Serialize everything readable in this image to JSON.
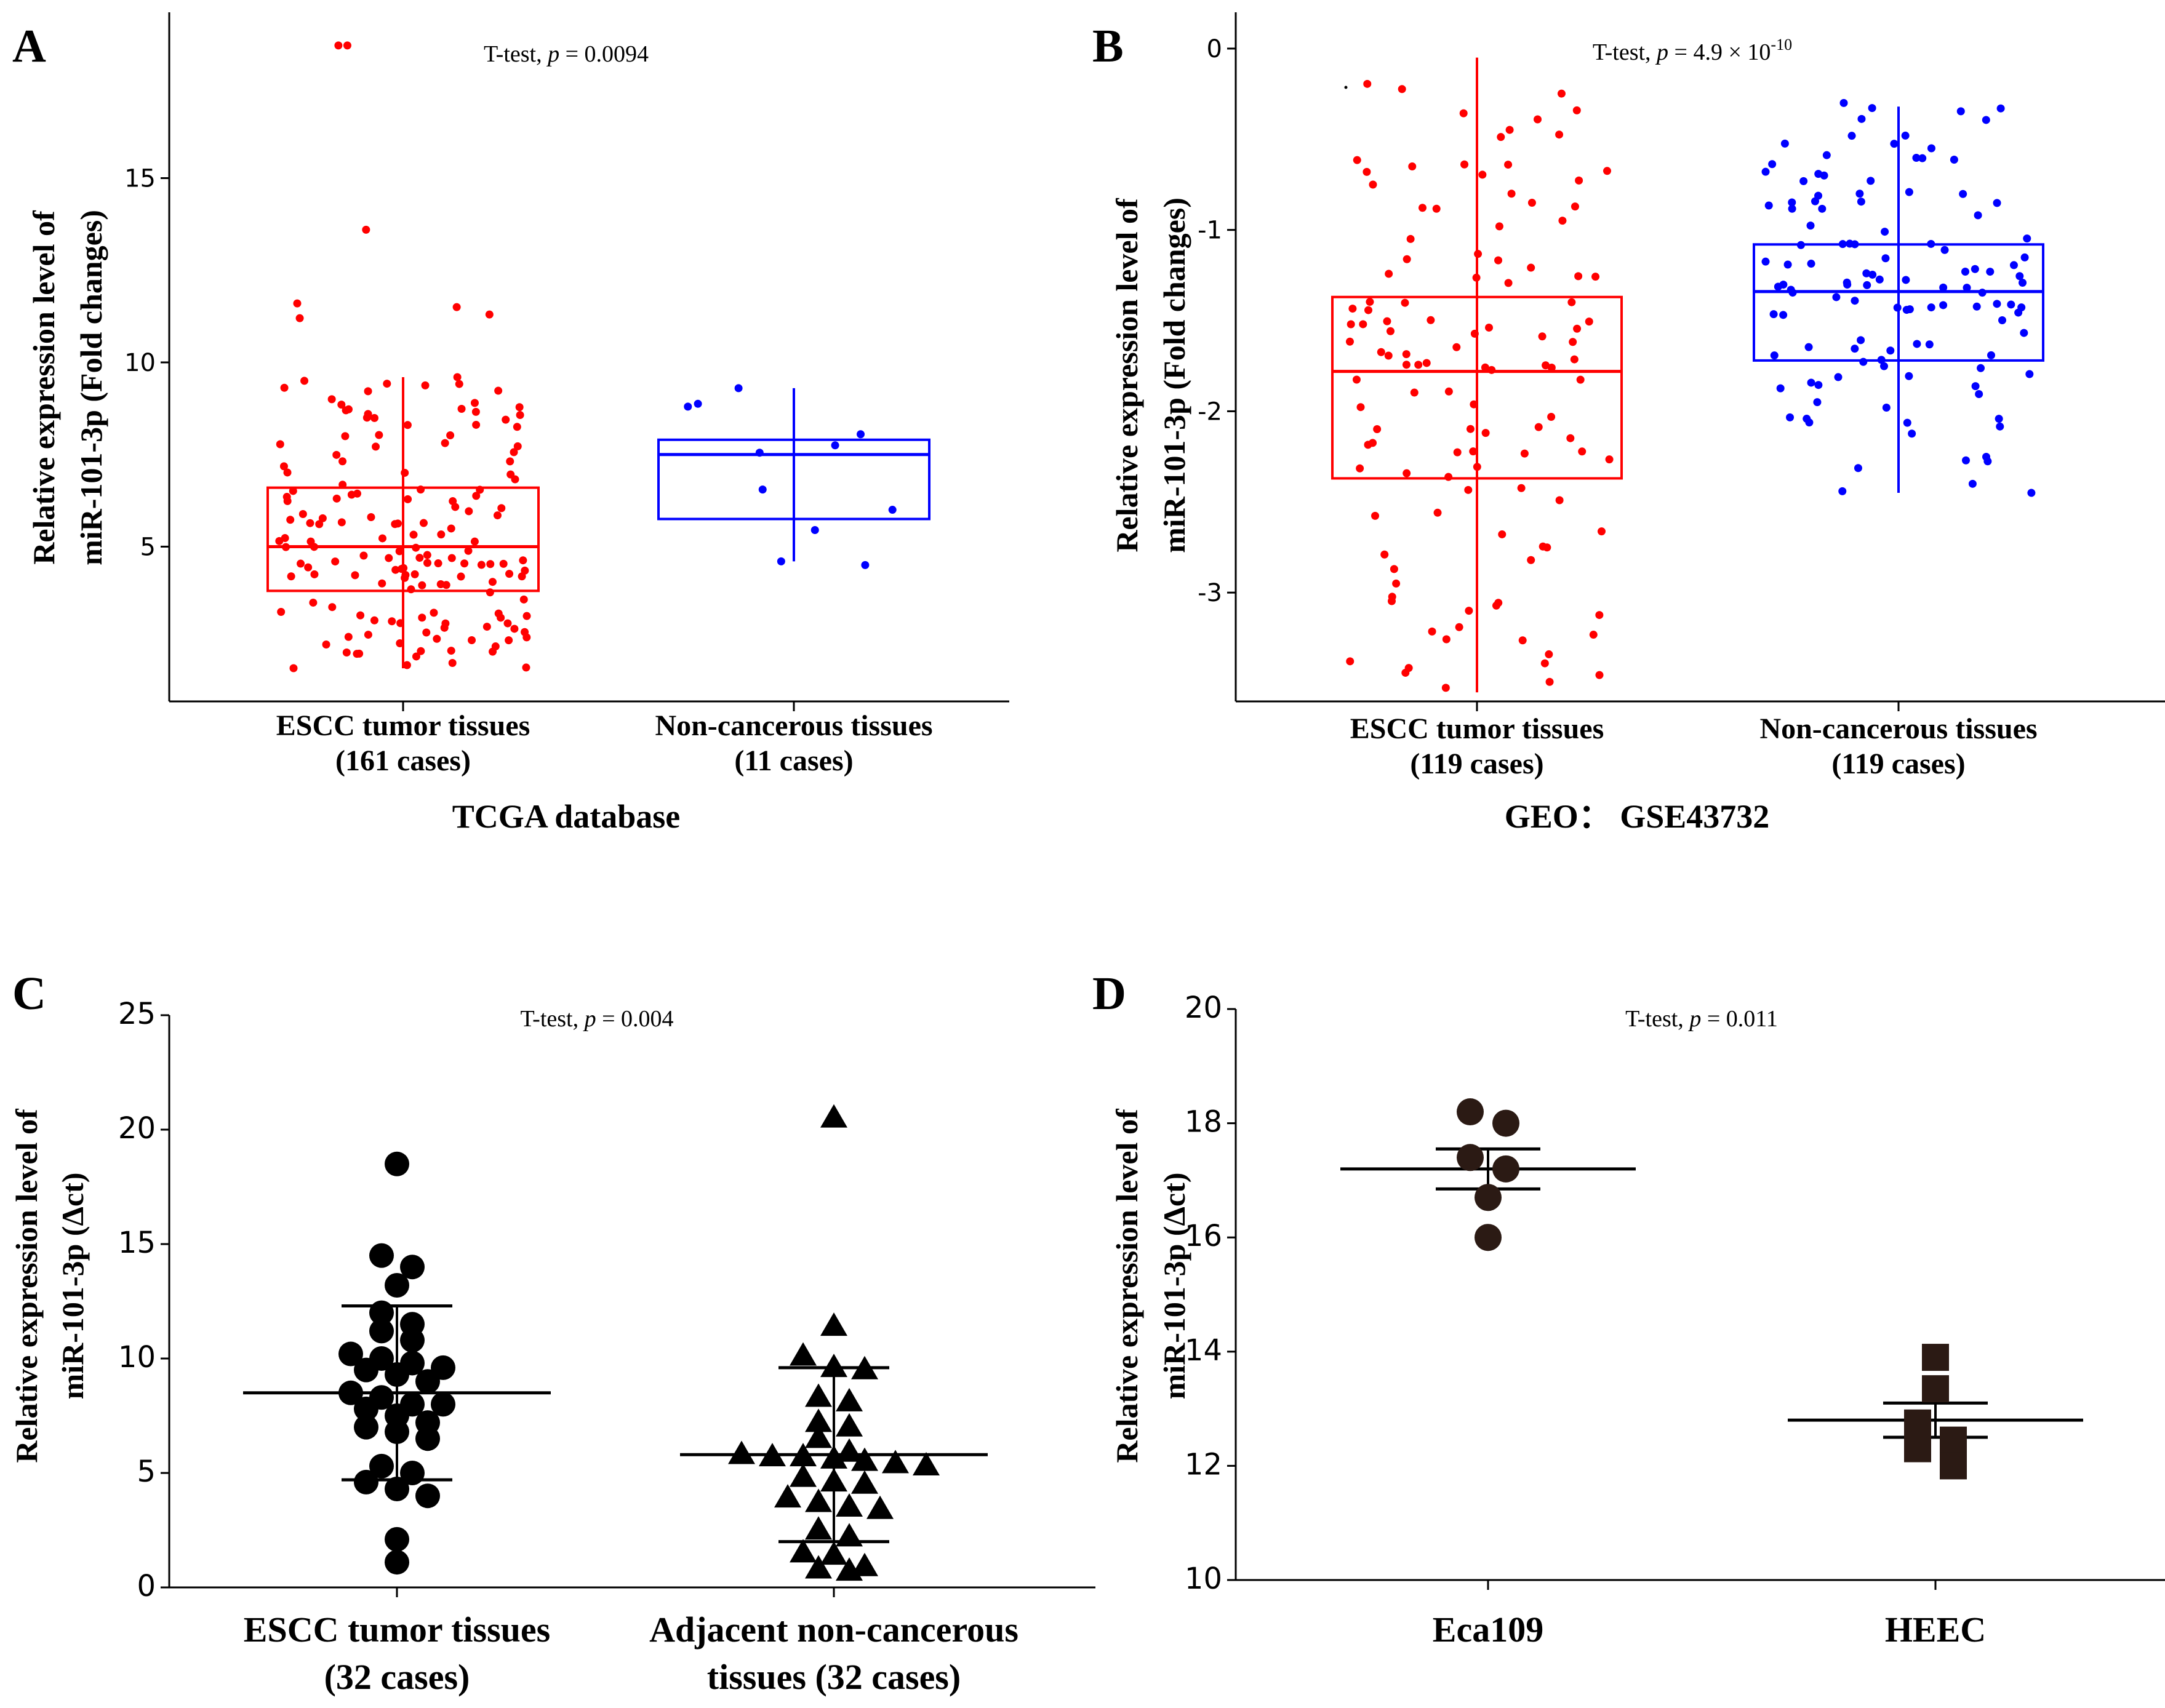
{
  "panels": [
    {
      "letter": "A",
      "stat": {
        "prefix": "T-test, ",
        "p": "p",
        "value": " = 0.0094",
        "exp": ""
      },
      "ylabel_line1": "Relative expression level of",
      "ylabel_line2": "miR-101-3p (Fold changes)",
      "database": "TCGA database"
    },
    {
      "letter": "B",
      "stat": {
        "prefix": "T-test, ",
        "p": "p",
        "value": " = 4.9 × 10",
        "exp": "-10"
      },
      "ylabel_line1": "Relative expression level of",
      "ylabel_line2": "miR-101-3p (Fold changes)",
      "database": "GEO： GSE43732"
    },
    {
      "letter": "C",
      "stat": {
        "prefix": "T-test, ",
        "p": "p",
        "value": " = 0.004",
        "exp": ""
      },
      "ylabel_line1": "Relative expression level of",
      "ylabel_line2": "miR-101-3p (Δct)",
      "database": ""
    },
    {
      "letter": "D",
      "stat": {
        "prefix": "T-test, ",
        "p": "p",
        "value": " = 0.011",
        "exp": ""
      },
      "ylabel_line1": "Relative expression level of",
      "ylabel_line2": "miR-101-3p (Δct)",
      "database": ""
    }
  ],
  "colors": {
    "tumor": "#ff0000",
    "normal": "#0000ff",
    "dots": "#000000",
    "cell": "#2b1a14"
  },
  "chart_data": [
    {
      "type": "box",
      "panel": "A",
      "title": "T-test, p = 0.0094",
      "xlabel": "TCGA database",
      "ylabel": "Relative expression level of miR-101-3p (Fold changes)",
      "ylim": [
        0.8,
        19.5
      ],
      "yticks": [
        5,
        10,
        15
      ],
      "categories": [
        {
          "line1": "ESCC tumor tissues",
          "line2": "(161 cases)"
        },
        {
          "line1": "Non-cancerous tissues",
          "line2": "(11 cases)"
        }
      ],
      "series": [
        {
          "name": "ESCC tumor tissues",
          "color": "#ff0000",
          "q1": 3.8,
          "median": 5.0,
          "q3": 6.6,
          "whisker_low": 1.7,
          "whisker_high": 9.6,
          "n": 161,
          "points": [
            18.6,
            18.6,
            13.6,
            11.6,
            11.5,
            11.3,
            11.2,
            9.6,
            9.5,
            9.0,
            8.9,
            8.7,
            8.6,
            8.5,
            8.3
          ]
        },
        {
          "name": "Non-cancerous tissues",
          "color": "#0000ff",
          "q1": 5.75,
          "median": 7.5,
          "q3": 7.9,
          "whisker_low": 4.6,
          "whisker_high": 9.3,
          "n": 11,
          "points": [
            9.3,
            8.8,
            8.05,
            7.75,
            7.55,
            6.55,
            6.0,
            5.45,
            4.6,
            4.5
          ]
        }
      ]
    },
    {
      "type": "box",
      "panel": "B",
      "title": "T-test, p = 4.9 × 10^-10",
      "xlabel": "GEO： GSE43732",
      "ylabel": "Relative expression level of miR-101-3p (Fold changes)",
      "ylim": [
        -3.6,
        0.2
      ],
      "yticks": [
        0,
        -1,
        -2,
        -3
      ],
      "categories": [
        {
          "line1": "ESCC tumor tissues",
          "line2": "(119 cases)"
        },
        {
          "line1": "Non-cancerous tissues",
          "line2": "(119 cases)"
        }
      ],
      "series": [
        {
          "name": "ESCC tumor tissues",
          "color": "#ff0000",
          "q1": -2.37,
          "median": -1.78,
          "q3": -1.37,
          "whisker_low": -3.55,
          "whisker_high": -0.05,
          "n": 119,
          "points": [
            -0.65,
            -0.68,
            -0.75,
            -0.8,
            -0.85,
            -1.05,
            -2.87,
            -2.95,
            -3.1
          ]
        },
        {
          "name": "Non-cancerous tissues",
          "color": "#0000ff",
          "q1": -1.72,
          "median": -1.34,
          "q3": -1.08,
          "whisker_low": -2.45,
          "whisker_high": -0.32,
          "n": 119,
          "points": [
            -0.3,
            -0.33,
            -0.48,
            -0.7,
            -0.8,
            -2.4,
            -2.45
          ]
        }
      ]
    },
    {
      "type": "scatter",
      "panel": "C",
      "title": "T-test, p = 0.004",
      "xlabel": "",
      "ylabel": "Relative expression level of miR-101-3p (Δct)",
      "ylim": [
        0,
        25
      ],
      "yticks": [
        0,
        5,
        10,
        15,
        20,
        25
      ],
      "categories": [
        {
          "line1": "ESCC tumor tissues",
          "line2": "(32 cases)"
        },
        {
          "line1": "Adjacent non-cancerous",
          "line2": "tissues (32 cases)"
        }
      ],
      "series": [
        {
          "name": "ESCC tumor tissues",
          "marker": "circle",
          "mean": 8.5,
          "sd_low": 4.7,
          "sd_high": 12.3,
          "n": 32,
          "values": [
            18.5,
            14.5,
            14.0,
            13.2,
            12.0,
            11.5,
            11.2,
            10.8,
            10.2,
            10.0,
            9.8,
            9.6,
            9.5,
            9.3,
            9.0,
            8.5,
            8.3,
            8.0,
            8.0,
            7.8,
            7.5,
            7.2,
            7.0,
            6.8,
            6.5,
            5.3,
            5.0,
            4.6,
            4.3,
            4.0,
            2.1,
            1.1
          ]
        },
        {
          "name": "Adjacent non-cancerous tissues",
          "marker": "triangle",
          "mean": 5.8,
          "sd_low": 2.0,
          "sd_high": 9.6,
          "n": 32,
          "values": [
            20.5,
            11.4,
            10.1,
            9.6,
            9.5,
            8.3,
            8.1,
            7.2,
            7.0,
            6.5,
            5.9,
            5.8,
            5.7,
            5.7,
            5.6,
            5.5,
            5.4,
            5.3,
            4.8,
            4.6,
            4.5,
            3.9,
            3.7,
            3.5,
            3.4,
            2.5,
            2.2,
            1.5,
            1.4,
            0.9,
            0.8,
            0.7
          ]
        }
      ]
    },
    {
      "type": "scatter",
      "panel": "D",
      "title": "T-test, p = 0.011",
      "xlabel": "",
      "ylabel": "Relative expression level of miR-101-3p (Δct)",
      "ylim": [
        10,
        20
      ],
      "yticks": [
        10,
        12,
        14,
        16,
        18,
        20
      ],
      "categories": [
        {
          "line1": "Eca109",
          "line2": ""
        },
        {
          "line1": "HEEC",
          "line2": ""
        }
      ],
      "series": [
        {
          "name": "Eca109",
          "marker": "circle",
          "mean": 17.2,
          "sem_low": 16.85,
          "sem_high": 17.55,
          "n": 6,
          "values": [
            18.2,
            18.0,
            17.4,
            17.2,
            16.7,
            16.0
          ]
        },
        {
          "name": "HEEC",
          "marker": "square",
          "mean": 12.8,
          "sem_low": 12.5,
          "sem_high": 13.1,
          "n": 6,
          "values": [
            13.9,
            13.35,
            12.75,
            12.45,
            12.3,
            12.0
          ]
        }
      ]
    }
  ]
}
